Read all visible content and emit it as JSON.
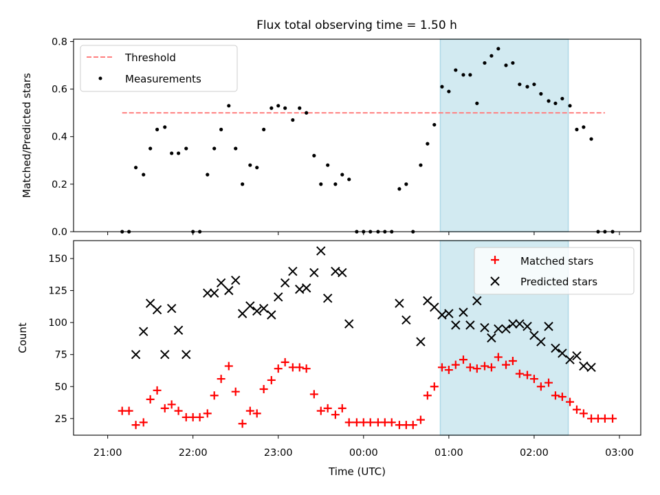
{
  "title": "Flux total observing time = 1.50 h",
  "colors": {
    "threshold": "#ff7f7f",
    "measurement": "#000000",
    "matched": "#ff0000",
    "predicted": "#000000",
    "span_fill": "#add8e6"
  },
  "chart_data": [
    {
      "type": "scatter",
      "ylabel": "Matched/Predicted stars",
      "xlabel": "",
      "xlim": [
        -0.4,
        6.25
      ],
      "ylim": [
        0,
        0.81
      ],
      "x_tick_values": [
        0,
        1,
        2,
        3,
        4,
        5,
        6
      ],
      "y_ticks": [
        "0.0",
        "0.2",
        "0.4",
        "0.6",
        "0.8"
      ],
      "highlight_span": [
        3.9,
        5.4
      ],
      "legend": {
        "placement": "top-left",
        "threshold_label": "Threshold",
        "measurements_label": "Measurements"
      },
      "threshold": {
        "name": "Threshold",
        "value": 0.5,
        "x": [
          0.17,
          5.83
        ]
      },
      "measurements": {
        "name": "Measurements",
        "points": [
          [
            0.17,
            0
          ],
          [
            0.25,
            0
          ],
          [
            0.33,
            0.27
          ],
          [
            0.42,
            0.24
          ],
          [
            0.5,
            0.35
          ],
          [
            0.58,
            0.43
          ],
          [
            0.67,
            0.44
          ],
          [
            0.75,
            0.33
          ],
          [
            0.83,
            0.33
          ],
          [
            0.92,
            0.35
          ],
          [
            1.0,
            0
          ],
          [
            1.08,
            0
          ],
          [
            1.17,
            0.24
          ],
          [
            1.25,
            0.35
          ],
          [
            1.33,
            0.43
          ],
          [
            1.42,
            0.53
          ],
          [
            1.5,
            0.35
          ],
          [
            1.58,
            0.2
          ],
          [
            1.67,
            0.28
          ],
          [
            1.75,
            0.27
          ],
          [
            1.83,
            0.43
          ],
          [
            1.92,
            0.52
          ],
          [
            2.0,
            0.53
          ],
          [
            2.08,
            0.52
          ],
          [
            2.17,
            0.47
          ],
          [
            2.25,
            0.52
          ],
          [
            2.33,
            0.5
          ],
          [
            2.42,
            0.32
          ],
          [
            2.5,
            0.2
          ],
          [
            2.58,
            0.28
          ],
          [
            2.67,
            0.2
          ],
          [
            2.75,
            0.24
          ],
          [
            2.83,
            0.22
          ],
          [
            2.92,
            0
          ],
          [
            3.0,
            0
          ],
          [
            3.08,
            0
          ],
          [
            3.17,
            0
          ],
          [
            3.25,
            0
          ],
          [
            3.33,
            0
          ],
          [
            3.42,
            0.18
          ],
          [
            3.5,
            0.2
          ],
          [
            3.58,
            0
          ],
          [
            3.67,
            0.28
          ],
          [
            3.75,
            0.37
          ],
          [
            3.83,
            0.45
          ],
          [
            3.92,
            0.61
          ],
          [
            4.0,
            0.59
          ],
          [
            4.08,
            0.68
          ],
          [
            4.17,
            0.66
          ],
          [
            4.25,
            0.66
          ],
          [
            4.33,
            0.54
          ],
          [
            4.42,
            0.71
          ],
          [
            4.5,
            0.74
          ],
          [
            4.58,
            0.77
          ],
          [
            4.67,
            0.7
          ],
          [
            4.75,
            0.71
          ],
          [
            4.83,
            0.62
          ],
          [
            4.92,
            0.61
          ],
          [
            5.0,
            0.62
          ],
          [
            5.08,
            0.58
          ],
          [
            5.17,
            0.55
          ],
          [
            5.25,
            0.54
          ],
          [
            5.33,
            0.56
          ],
          [
            5.42,
            0.53
          ],
          [
            5.5,
            0.43
          ],
          [
            5.58,
            0.44
          ],
          [
            5.67,
            0.39
          ],
          [
            5.75,
            0
          ],
          [
            5.83,
            0
          ],
          [
            5.92,
            0
          ]
        ]
      }
    },
    {
      "type": "scatter",
      "ylabel": "Count",
      "xlabel": "Time (UTC)",
      "xlim": [
        -0.4,
        6.25
      ],
      "ylim": [
        12,
        164
      ],
      "x_ticks": [
        "21:00",
        "22:00",
        "23:00",
        "00:00",
        "01:00",
        "02:00",
        "03:00"
      ],
      "x_tick_values": [
        0,
        1,
        2,
        3,
        4,
        5,
        6
      ],
      "y_ticks": [
        "25",
        "50",
        "75",
        "100",
        "125",
        "150"
      ],
      "y_tick_values": [
        25,
        50,
        75,
        100,
        125,
        150
      ],
      "highlight_span": [
        3.9,
        5.4
      ],
      "legend": {
        "placement": "top-right",
        "matched_label": "Matched stars",
        "predicted_label": "Predicted stars"
      },
      "series": [
        {
          "name": "Matched stars",
          "marker": "plus",
          "points": [
            [
              0.17,
              31
            ],
            [
              0.25,
              31
            ],
            [
              0.33,
              20
            ],
            [
              0.42,
              22
            ],
            [
              0.5,
              40
            ],
            [
              0.58,
              47
            ],
            [
              0.67,
              33
            ],
            [
              0.75,
              36
            ],
            [
              0.83,
              31
            ],
            [
              0.92,
              26
            ],
            [
              1.0,
              26
            ],
            [
              1.08,
              26
            ],
            [
              1.17,
              29
            ],
            [
              1.25,
              43
            ],
            [
              1.33,
              56
            ],
            [
              1.42,
              66
            ],
            [
              1.5,
              46
            ],
            [
              1.58,
              21
            ],
            [
              1.67,
              31
            ],
            [
              1.75,
              29
            ],
            [
              1.83,
              48
            ],
            [
              1.92,
              55
            ],
            [
              2.0,
              64
            ],
            [
              2.08,
              69
            ],
            [
              2.17,
              65
            ],
            [
              2.25,
              65
            ],
            [
              2.33,
              64
            ],
            [
              2.42,
              44
            ],
            [
              2.5,
              31
            ],
            [
              2.58,
              33
            ],
            [
              2.67,
              28
            ],
            [
              2.75,
              33
            ],
            [
              2.83,
              22
            ],
            [
              2.92,
              22
            ],
            [
              3.0,
              22
            ],
            [
              3.08,
              22
            ],
            [
              3.17,
              22
            ],
            [
              3.25,
              22
            ],
            [
              3.33,
              22
            ],
            [
              3.42,
              20
            ],
            [
              3.5,
              20
            ],
            [
              3.58,
              20
            ],
            [
              3.67,
              24
            ],
            [
              3.75,
              43
            ],
            [
              3.83,
              50
            ],
            [
              3.92,
              65
            ],
            [
              4.0,
              63
            ],
            [
              4.08,
              67
            ],
            [
              4.17,
              71
            ],
            [
              4.25,
              65
            ],
            [
              4.33,
              64
            ],
            [
              4.42,
              66
            ],
            [
              4.5,
              65
            ],
            [
              4.58,
              73
            ],
            [
              4.67,
              67
            ],
            [
              4.75,
              70
            ],
            [
              4.83,
              60
            ],
            [
              4.92,
              59
            ],
            [
              5.0,
              56
            ],
            [
              5.08,
              50
            ],
            [
              5.17,
              53
            ],
            [
              5.25,
              43
            ],
            [
              5.33,
              42
            ],
            [
              5.42,
              38
            ],
            [
              5.5,
              32
            ],
            [
              5.58,
              29
            ],
            [
              5.67,
              25
            ],
            [
              5.75,
              25
            ],
            [
              5.83,
              25
            ],
            [
              5.92,
              25
            ]
          ]
        },
        {
          "name": "Predicted stars",
          "marker": "x",
          "points": [
            [
              0.33,
              75
            ],
            [
              0.42,
              93
            ],
            [
              0.5,
              115
            ],
            [
              0.58,
              110
            ],
            [
              0.67,
              75
            ],
            [
              0.75,
              111
            ],
            [
              0.83,
              94
            ],
            [
              0.92,
              75
            ],
            [
              1.17,
              123
            ],
            [
              1.25,
              123
            ],
            [
              1.33,
              131
            ],
            [
              1.42,
              125
            ],
            [
              1.5,
              133
            ],
            [
              1.58,
              107
            ],
            [
              1.67,
              113
            ],
            [
              1.75,
              109
            ],
            [
              1.83,
              111
            ],
            [
              1.92,
              106
            ],
            [
              2.0,
              120
            ],
            [
              2.08,
              131
            ],
            [
              2.17,
              140
            ],
            [
              2.25,
              126
            ],
            [
              2.33,
              127
            ],
            [
              2.42,
              139
            ],
            [
              2.5,
              156
            ],
            [
              2.58,
              119
            ],
            [
              2.67,
              140
            ],
            [
              2.75,
              139
            ],
            [
              2.83,
              99
            ],
            [
              3.42,
              115
            ],
            [
              3.5,
              102
            ],
            [
              3.67,
              85
            ],
            [
              3.75,
              117
            ],
            [
              3.83,
              112
            ],
            [
              3.92,
              106
            ],
            [
              4.0,
              107
            ],
            [
              4.08,
              98
            ],
            [
              4.17,
              108
            ],
            [
              4.25,
              98
            ],
            [
              4.33,
              117
            ],
            [
              4.42,
              96
            ],
            [
              4.5,
              88
            ],
            [
              4.58,
              95
            ],
            [
              4.67,
              95
            ],
            [
              4.75,
              99
            ],
            [
              4.83,
              99
            ],
            [
              4.92,
              97
            ],
            [
              5.0,
              90
            ],
            [
              5.08,
              85
            ],
            [
              5.17,
              97
            ],
            [
              5.25,
              80
            ],
            [
              5.33,
              76
            ],
            [
              5.42,
              71
            ],
            [
              5.5,
              74
            ],
            [
              5.58,
              66
            ],
            [
              5.67,
              65
            ]
          ]
        }
      ]
    }
  ]
}
